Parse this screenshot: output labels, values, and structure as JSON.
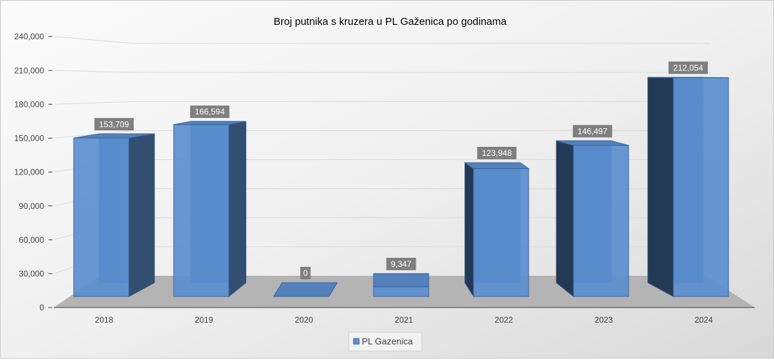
{
  "chart_data": {
    "type": "bar3d",
    "title": "Broj putnika s kruzera u PL Gaženica po godinama",
    "categories": [
      "2018",
      "2019",
      "2020",
      "2021",
      "2022",
      "2023",
      "2024"
    ],
    "series": [
      {
        "name": "PL Gazenica",
        "color": "#5b8fd0",
        "values": [
          153709,
          166594,
          0,
          9347,
          123948,
          146497,
          212054
        ],
        "value_labels": [
          "153,709",
          "166,594",
          "0",
          "9,347",
          "123,948",
          "146,497",
          "212,054"
        ]
      }
    ],
    "ylim": [
      0,
      240000
    ],
    "yticks": [
      0,
      {
        "value": 30000,
        "label": "30,000"
      },
      {
        "value": 60000,
        "label": "60,000"
      },
      {
        "value": 90000,
        "label": "90,000"
      },
      {
        "value": 120000,
        "label": "120,000"
      },
      {
        "value": 150000,
        "label": "150,000"
      },
      {
        "value": 180000,
        "label": "180,000"
      },
      {
        "value": 210000,
        "label": "210,000"
      },
      {
        "value": 240000,
        "label": "240,000"
      }
    ],
    "grid": true,
    "legend": "bottom"
  }
}
